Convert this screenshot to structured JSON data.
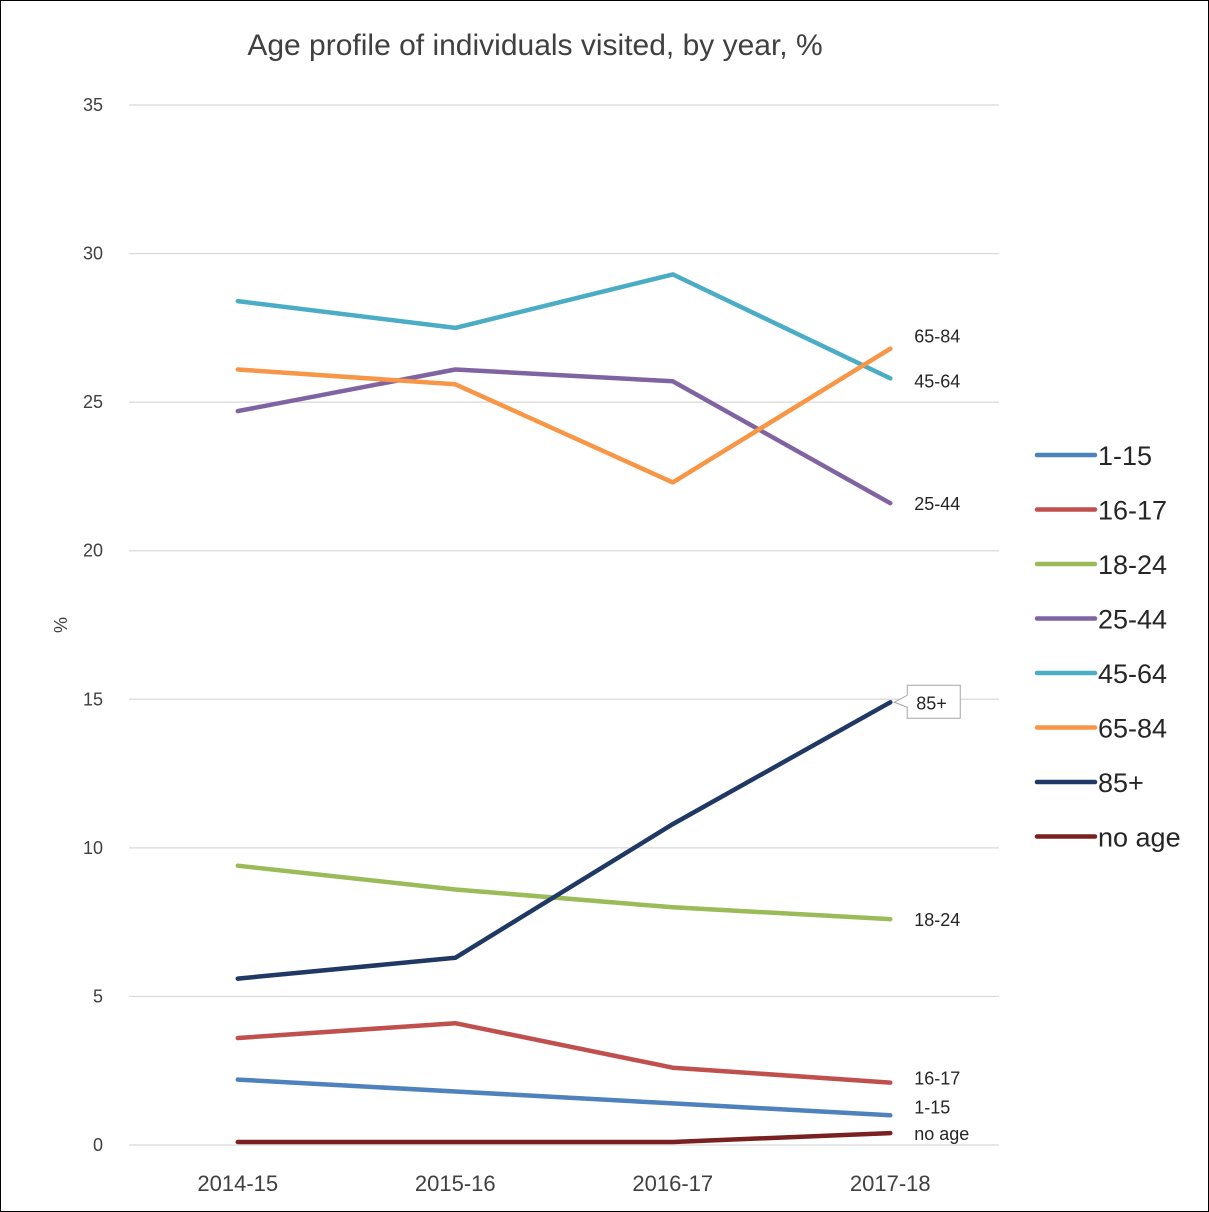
{
  "chart_data": {
    "type": "line",
    "title": "Age profile of individuals visited, by year, %",
    "xlabel": "",
    "ylabel": "%",
    "categories": [
      "2014-15",
      "2015-16",
      "2016-17",
      "2017-18"
    ],
    "ylim": [
      0,
      35
    ],
    "yticks": [
      0,
      5,
      10,
      15,
      20,
      25,
      30,
      35
    ],
    "grid": true,
    "legend_position": "right",
    "series": [
      {
        "name": "1-15",
        "color": "#4f81bd",
        "values": [
          2.2,
          1.8,
          1.4,
          1.0
        ],
        "end_label": "1-15"
      },
      {
        "name": "16-17",
        "color": "#c0504d",
        "values": [
          3.6,
          4.1,
          2.6,
          2.1
        ],
        "end_label": "16-17"
      },
      {
        "name": "18-24",
        "color": "#9bbb59",
        "values": [
          9.4,
          8.6,
          8.0,
          7.6
        ],
        "end_label": "18-24"
      },
      {
        "name": "25-44",
        "color": "#8064a2",
        "values": [
          24.7,
          26.1,
          25.7,
          21.6
        ],
        "end_label": "25-44"
      },
      {
        "name": "45-64",
        "color": "#4bacc6",
        "values": [
          28.4,
          27.5,
          29.3,
          25.8
        ],
        "end_label": "45-64"
      },
      {
        "name": "65-84",
        "color": "#f79646",
        "values": [
          26.1,
          25.6,
          22.3,
          26.8
        ],
        "end_label": "65-84"
      },
      {
        "name": "85+",
        "color": "#1f3864",
        "values": [
          5.6,
          6.3,
          10.8,
          14.9
        ],
        "end_label": "85+"
      },
      {
        "name": "no age",
        "color": "#7b2020",
        "values": [
          0.1,
          0.1,
          0.1,
          0.4
        ],
        "end_label": "no age"
      }
    ]
  }
}
